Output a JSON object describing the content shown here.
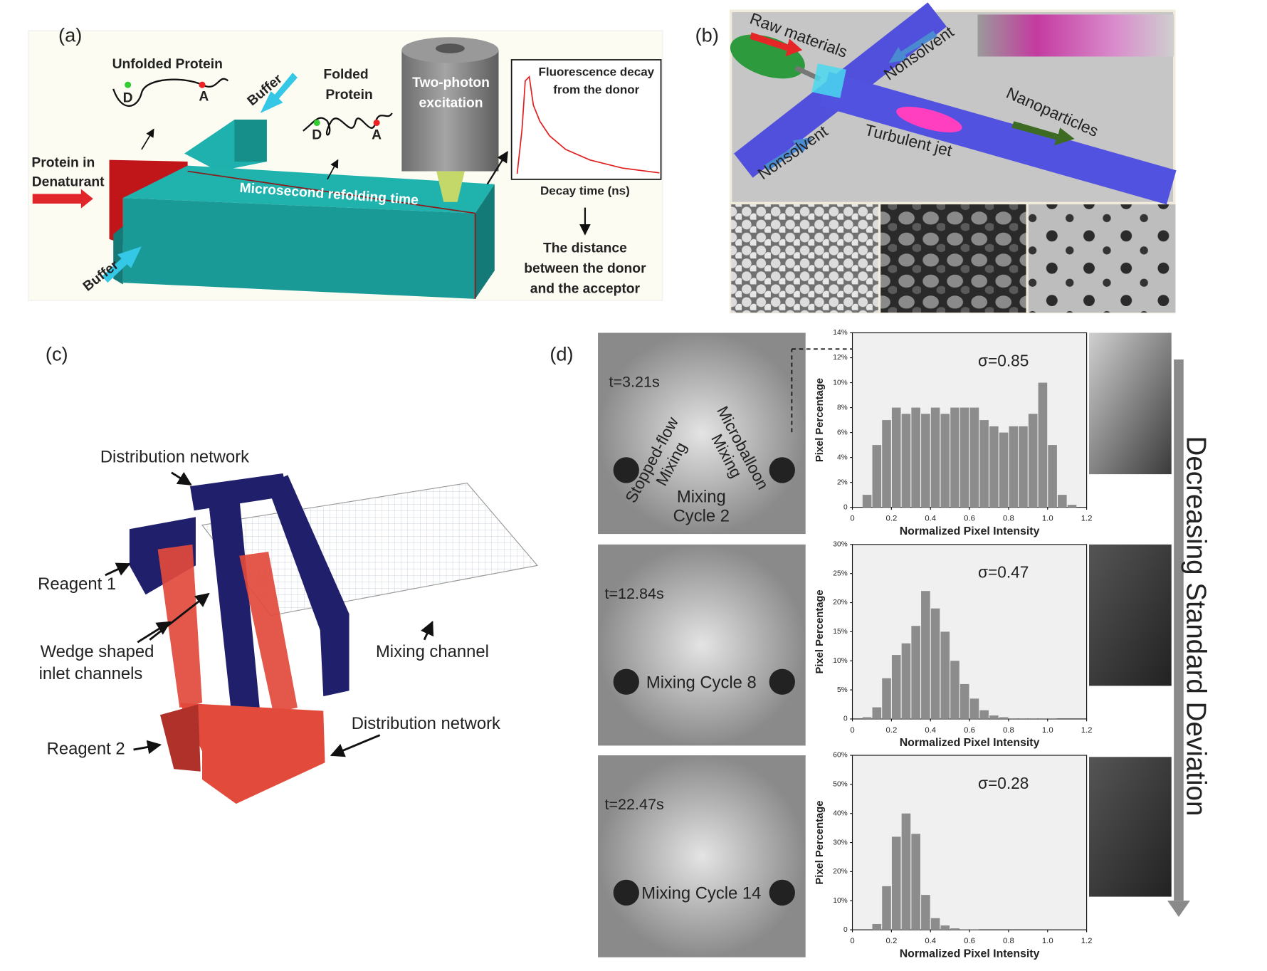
{
  "panel_a": {
    "label": "(a)",
    "unfolded": "Unfolded Protein",
    "folded": [
      "Folded",
      "Protein"
    ],
    "donor": "D",
    "acceptor": "A",
    "buffer_top": "Buffer",
    "buffer_bottom": "Buffer",
    "protein_in": [
      "Protein in",
      "Denaturant"
    ],
    "channel": "Microsecond refolding time",
    "excitation": [
      "Two-photon",
      "excitation"
    ],
    "decay_title": [
      "Fluorescence decay",
      "from the donor"
    ],
    "decay_axis": "Decay time (ns)",
    "distance": [
      "The distance",
      "between the donor",
      "and the acceptor"
    ]
  },
  "panel_b": {
    "label": "(b)",
    "raw": "Raw materials",
    "nonsolvent_top": "Nonsolvent",
    "nonsolvent_bottom": "Nonsolvent",
    "jet": "Turbulent jet",
    "nanoparticles": "Nanoparticles"
  },
  "panel_c": {
    "label": "(c)",
    "distribution_top": "Distribution network",
    "reagent1": "Reagent 1",
    "wedge": [
      "Wedge shaped",
      "inlet channels"
    ],
    "mixing": "Mixing channel",
    "distribution_bottom": "Distribution network",
    "reagent2": "Reagent 2"
  },
  "panel_d": {
    "label": "(d)",
    "stopped": [
      "Stopped-flow",
      "Mixing"
    ],
    "microballoon": [
      "Microballoon",
      "Mixing"
    ],
    "arrow": "Decreasing Standard Deviation",
    "frames": [
      {
        "time": "t=3.21s",
        "caption": [
          "Mixing",
          "Cycle 2"
        ]
      },
      {
        "time": "t=12.84s",
        "caption": [
          "Mixing  Cycle 8"
        ]
      },
      {
        "time": "t=22.47s",
        "caption": [
          "Mixing  Cycle 14"
        ]
      }
    ],
    "charts": [
      {
        "type": "histogram",
        "sigma": "σ=0.85",
        "xlabel": "Normalized Pixel Intensity",
        "ylabel": "Pixel Percentage",
        "color": "#8c8c8c",
        "bins": [
          0.05,
          0.1,
          0.15,
          0.2,
          0.25,
          0.3,
          0.35,
          0.4,
          0.45,
          0.5,
          0.55,
          0.6,
          0.65,
          0.7,
          0.75,
          0.8,
          0.85,
          0.9,
          0.95,
          1.0,
          1.05,
          1.1,
          1.15
        ],
        "values": [
          1,
          5,
          7,
          8,
          7.5,
          8,
          7.5,
          8,
          7.5,
          8,
          8,
          8,
          7,
          6.5,
          6,
          6.5,
          6.5,
          7.5,
          10,
          5,
          1,
          0.2
        ],
        "xlim": [
          0,
          1.2
        ],
        "xticks": [
          0,
          0.2,
          0.4,
          0.6,
          0.8,
          {
            "value": 1,
            "label": "1.0"
          },
          1.2
        ],
        "ylim": [
          0,
          14
        ],
        "yticks": [
          0,
          {
            "value": 2,
            "label": "2%"
          },
          {
            "value": 4,
            "label": "4%"
          },
          {
            "value": 6,
            "label": "6%"
          },
          {
            "value": 8,
            "label": "8%"
          },
          {
            "value": 10,
            "label": "10%"
          },
          {
            "value": 12,
            "label": "12%"
          },
          {
            "value": 14,
            "label": "14%"
          }
        ]
      },
      {
        "type": "histogram",
        "sigma": "σ=0.47",
        "xlabel": "Normalized Pixel Intensity",
        "ylabel": "Pixel Percentage",
        "color": "#8c8c8c",
        "bins": [
          0.05,
          0.1,
          0.15,
          0.2,
          0.25,
          0.3,
          0.35,
          0.4,
          0.45,
          0.5,
          0.55,
          0.6,
          0.65,
          0.7,
          0.75,
          0.8,
          0.85,
          0.9,
          0.95,
          1.0,
          1.05,
          1.1,
          1.15
        ],
        "values": [
          0.3,
          2,
          7,
          11,
          13,
          16,
          22,
          19,
          15,
          10,
          6,
          3.5,
          1.5,
          0.6,
          0.3,
          0.1,
          0.1,
          0.1,
          0.1,
          0.1,
          0,
          0
        ],
        "xlim": [
          0,
          1.2
        ],
        "xticks": [
          0,
          0.2,
          0.4,
          0.6,
          0.8,
          {
            "value": 1,
            "label": "1.0"
          },
          1.2
        ],
        "ylim": [
          0,
          30
        ],
        "yticks": [
          0,
          {
            "value": 5,
            "label": "5%"
          },
          {
            "value": 10,
            "label": "10%"
          },
          {
            "value": 15,
            "label": "15%"
          },
          {
            "value": 20,
            "label": "20%"
          },
          {
            "value": 25,
            "label": "25%"
          },
          {
            "value": 30,
            "label": "30%"
          }
        ]
      },
      {
        "type": "histogram",
        "sigma": "σ=0.28",
        "xlabel": "Normalized Pixel Intensity",
        "ylabel": "Pixel Percentage",
        "color": "#8c8c8c",
        "bins": [
          0.05,
          0.1,
          0.15,
          0.2,
          0.25,
          0.3,
          0.35,
          0.4,
          0.45,
          0.5,
          0.55,
          0.6,
          0.65,
          0.7,
          0.75,
          0.8,
          0.85,
          0.9,
          0.95,
          1.0,
          1.05,
          1.1,
          1.15
        ],
        "values": [
          0,
          2,
          15,
          32,
          40,
          33,
          12,
          4,
          1.5,
          0.5,
          0.2,
          0.1,
          0,
          0,
          0,
          0,
          0,
          0,
          0,
          0,
          0,
          0
        ],
        "xlim": [
          0,
          1.2
        ],
        "xticks": [
          0,
          0.2,
          0.4,
          0.6,
          0.8,
          {
            "value": 1,
            "label": "1.0"
          },
          1.2
        ],
        "ylim": [
          0,
          60
        ],
        "yticks": [
          0,
          {
            "value": 10,
            "label": "10%"
          },
          {
            "value": 20,
            "label": "20%"
          },
          {
            "value": 30,
            "label": "30%"
          },
          {
            "value": 40,
            "label": "40%"
          },
          {
            "value": 50,
            "label": "50%"
          },
          {
            "value": 60,
            "label": "60%"
          }
        ]
      }
    ]
  }
}
